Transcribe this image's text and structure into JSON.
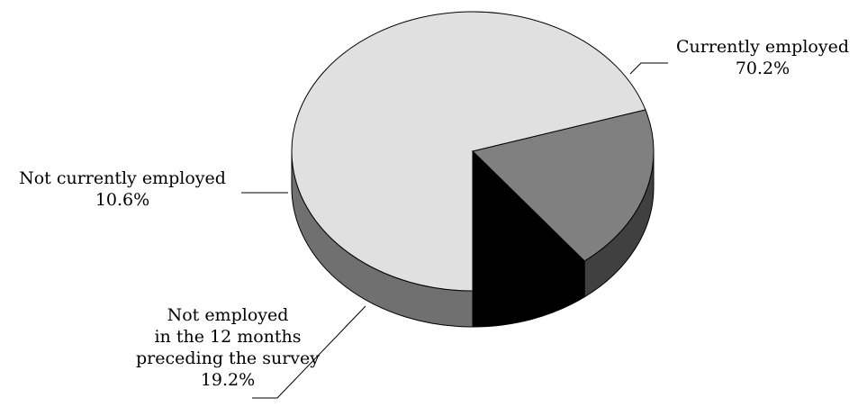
{
  "chart_data": {
    "type": "pie",
    "title": "",
    "slices": [
      {
        "label": "Currently employed",
        "value_label": "70.2%",
        "value": 70.2,
        "color": "#e0e0e0",
        "side_color": "#707070"
      },
      {
        "label": "Not employed in the 12 months preceding the survey",
        "label_lines": [
          "Not employed",
          "in the 12 months",
          "preceding the survey"
        ],
        "value_label": "19.2%",
        "value": 19.2,
        "color": "#808080",
        "side_color": "#404040"
      },
      {
        "label": "Not currently employed",
        "value_label": "10.6%",
        "value": 10.6,
        "color": "#000000",
        "side_color": "#000000"
      }
    ],
    "legend": "none",
    "style": "3d"
  }
}
